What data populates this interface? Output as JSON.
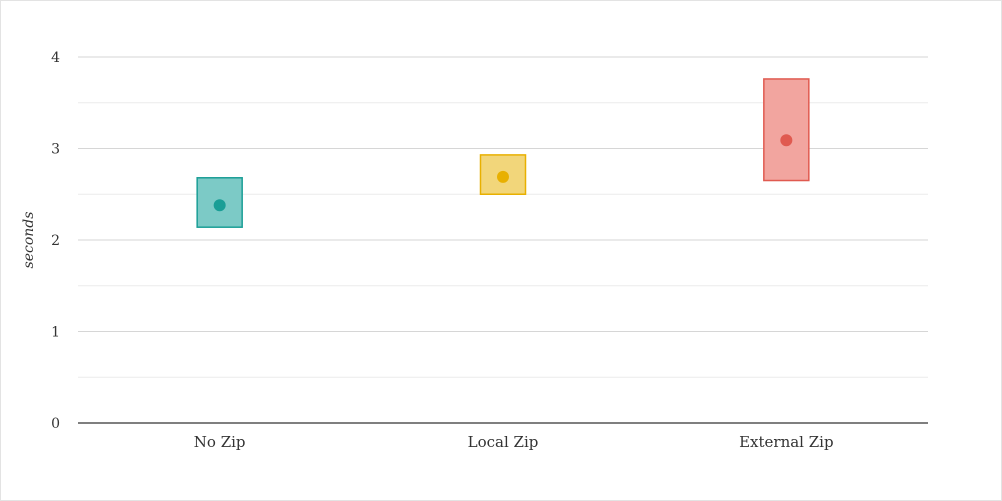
{
  "chart_data": {
    "type": "scatter",
    "ylabel": "seconds",
    "ylim": [
      0,
      4
    ],
    "yticks": [
      0,
      1,
      2,
      3,
      4
    ],
    "grid": true,
    "categories": [
      "No Zip",
      "Local Zip",
      "External Zip"
    ],
    "points": [
      {
        "category": "No Zip",
        "value": 2.38,
        "low": 2.14,
        "high": 2.68,
        "color": "#1a9e96",
        "fill": "#7ccac6"
      },
      {
        "category": "Local Zip",
        "value": 2.69,
        "low": 2.5,
        "high": 2.93,
        "color": "#e8b000",
        "fill": "#f2d67a"
      },
      {
        "category": "External Zip",
        "value": 3.09,
        "low": 2.65,
        "high": 3.76,
        "color": "#e05a50",
        "fill": "#f2a59f"
      }
    ]
  }
}
